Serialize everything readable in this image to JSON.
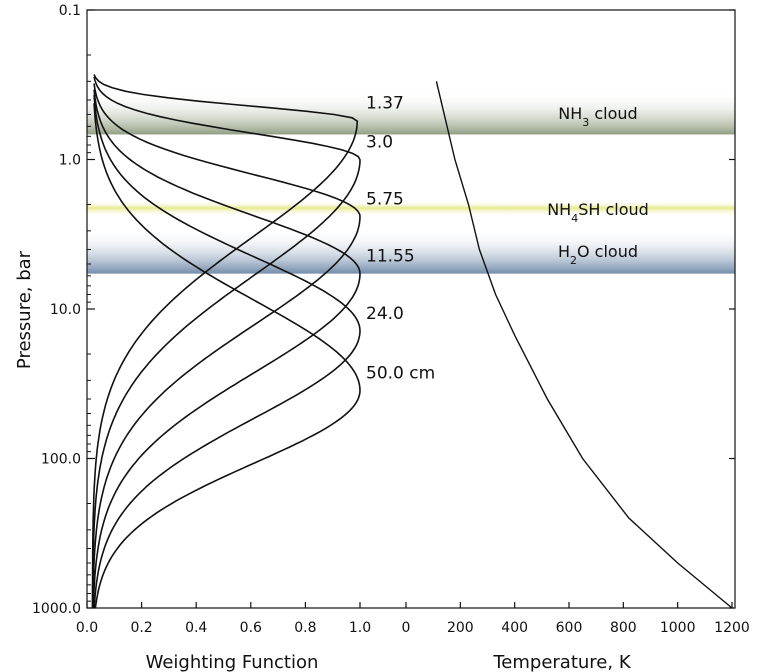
{
  "chart_data": {
    "type": "line",
    "y_axis": {
      "label": "Pressure, bar",
      "scale": "log",
      "range": [
        0.1,
        1000.0
      ],
      "inverted": true,
      "ticks": [
        {
          "value": 0.1,
          "label": "0.1"
        },
        {
          "value": 1.0,
          "label": "1.0"
        },
        {
          "value": 10.0,
          "label": "10.0"
        },
        {
          "value": 100.0,
          "label": "100.0"
        },
        {
          "value": 1000.0,
          "label": "1000.0"
        }
      ]
    },
    "x_axes": [
      {
        "label": "Weighting Function",
        "range": [
          0.0,
          1.0
        ],
        "ticks": [
          "0.0",
          "0.2",
          "0.4",
          "0.6",
          "0.8",
          "1.0"
        ]
      },
      {
        "label": "Temperature, K",
        "range": [
          0,
          1200
        ],
        "ticks": [
          "0",
          "200",
          "400",
          "600",
          "800",
          "1000",
          "1200"
        ]
      }
    ],
    "clouds": [
      {
        "name_parts": [
          "NH",
          "3",
          " cloud"
        ],
        "p_top": 0.35,
        "p_bottom": 0.68,
        "color": "#8d9a7d"
      },
      {
        "name_parts": [
          "NH",
          "4",
          "SH cloud"
        ],
        "p_top": 1.9,
        "p_bottom": 2.4,
        "color": "#e3e67a"
      },
      {
        "name_parts": [
          "H",
          "2",
          "O cloud"
        ],
        "p_top": 2.9,
        "p_bottom": 5.8,
        "color": "#6c87a6"
      }
    ],
    "series": [
      {
        "name": "1.37",
        "peak_pressure": 0.55,
        "peak_value": 0.97,
        "start_pressure": 0.27
      },
      {
        "name": "3.0",
        "peak_pressure": 1.0,
        "peak_value": 0.98,
        "start_pressure": 0.28
      },
      {
        "name": "5.75",
        "peak_pressure": 2.4,
        "peak_value": 0.98,
        "start_pressure": 0.31
      },
      {
        "name": "11.55",
        "peak_pressure": 5.8,
        "peak_value": 0.98,
        "start_pressure": 0.34
      },
      {
        "name": "24.0",
        "peak_pressure": 14.0,
        "peak_value": 0.98,
        "start_pressure": 0.37
      },
      {
        "name": "50.0 cm",
        "peak_pressure": 35.0,
        "peak_value": 0.98,
        "start_pressure": 0.42
      }
    ],
    "temperature_profile": {
      "points": [
        [
          112,
          0.3
        ],
        [
          180,
          1.0
        ],
        [
          230,
          2.0
        ],
        [
          270,
          4.0
        ],
        [
          330,
          8.0
        ],
        [
          400,
          15.0
        ],
        [
          520,
          40.0
        ],
        [
          650,
          100.0
        ],
        [
          820,
          250.0
        ],
        [
          1000,
          500.0
        ],
        [
          1200,
          1000.0
        ]
      ]
    }
  }
}
